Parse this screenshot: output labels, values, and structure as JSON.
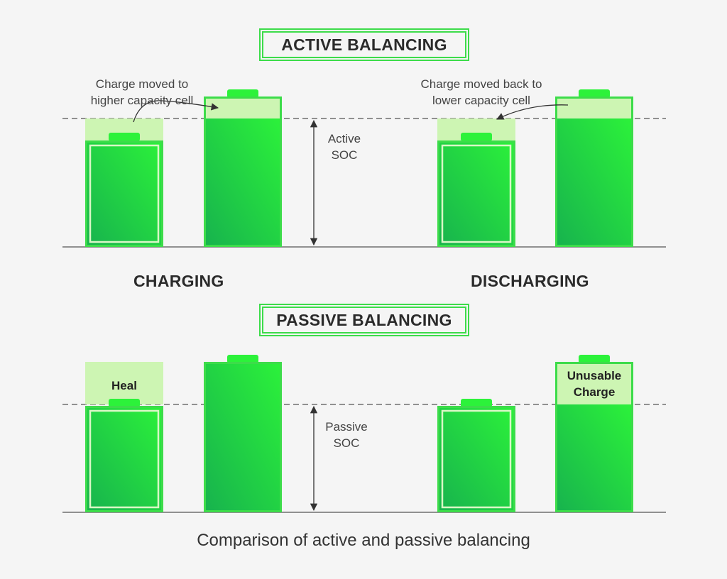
{
  "active": {
    "title": "ACTIVE BALANCING",
    "note_charging": [
      "Charge moved to",
      "higher capacity cell"
    ],
    "note_discharging": [
      "Charge moved back to",
      "lower capacity cell"
    ],
    "soc_label": [
      "Active",
      "SOC"
    ]
  },
  "labels": {
    "charging": "CHARGING",
    "discharging": "DISCHARGING"
  },
  "passive": {
    "title": "PASSIVE BALANCING",
    "heal": "Heal",
    "unusable": [
      "Unusable",
      "Charge"
    ],
    "soc_label": [
      "Passive",
      "SOC"
    ]
  },
  "caption": "Comparison of active and passive balancing",
  "colors": {
    "battery_light": "#2cf23a",
    "battery_dark": "#17b24e",
    "battery_border": "#3ddc4a",
    "highlight": "#cdf5b3",
    "line": "#555555",
    "background": "#f5f5f5"
  }
}
